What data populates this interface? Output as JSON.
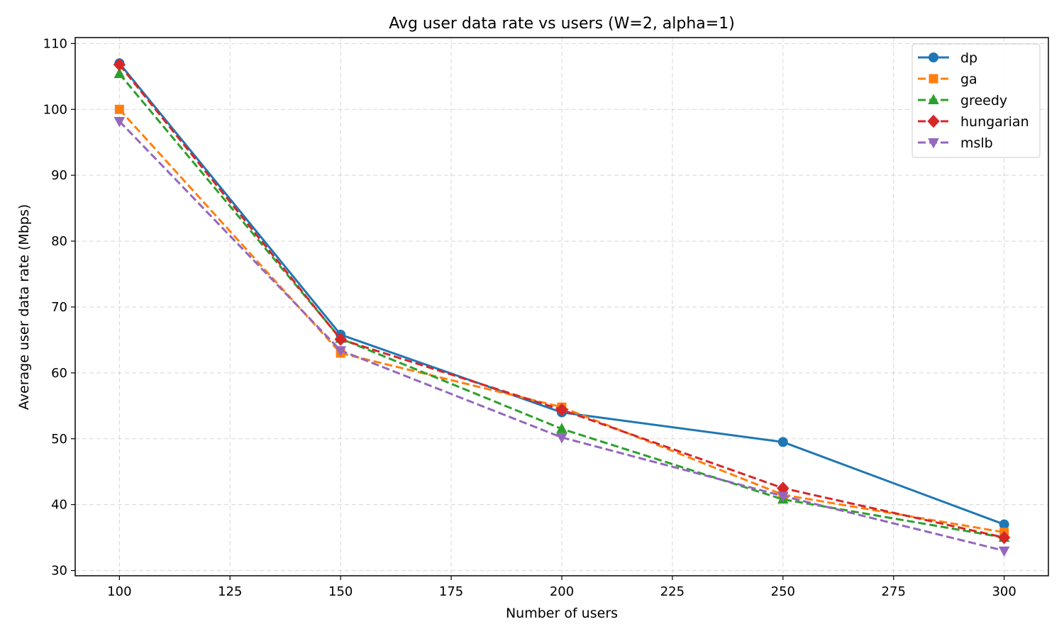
{
  "chart_data": {
    "type": "line",
    "title": "Avg user data rate vs users (W=2, alpha=1)",
    "xlabel": "Number of users",
    "ylabel": "Average user data rate (Mbps)",
    "x": [
      100,
      150,
      200,
      250,
      300
    ],
    "xlim": [
      90,
      310
    ],
    "ylim": [
      29.2,
      110.9
    ],
    "xticks": [
      100,
      125,
      150,
      175,
      200,
      225,
      250,
      275,
      300
    ],
    "yticks": [
      30,
      40,
      50,
      60,
      70,
      80,
      90,
      100,
      110
    ],
    "grid": true,
    "legend_position": "top-right",
    "series": [
      {
        "name": "dp",
        "values": [
          107.0,
          65.8,
          54.0,
          49.5,
          37.0
        ],
        "color": "#1f77b4",
        "marker": "circle",
        "line": "solid"
      },
      {
        "name": "ga",
        "values": [
          100.0,
          63.0,
          54.8,
          41.5,
          35.8
        ],
        "color": "#ff7f0e",
        "marker": "square",
        "line": "dashed"
      },
      {
        "name": "greedy",
        "values": [
          105.4,
          65.2,
          51.5,
          40.8,
          35.0
        ],
        "color": "#2ca02c",
        "marker": "triangle-up",
        "line": "dashed"
      },
      {
        "name": "hungarian",
        "values": [
          106.8,
          65.1,
          54.4,
          42.5,
          35.0
        ],
        "color": "#d62728",
        "marker": "diamond",
        "line": "dashed"
      },
      {
        "name": "mslb",
        "values": [
          98.2,
          63.4,
          50.2,
          41.3,
          33.0
        ],
        "color": "#9467bd",
        "marker": "triangle-down",
        "line": "dashed"
      }
    ]
  }
}
